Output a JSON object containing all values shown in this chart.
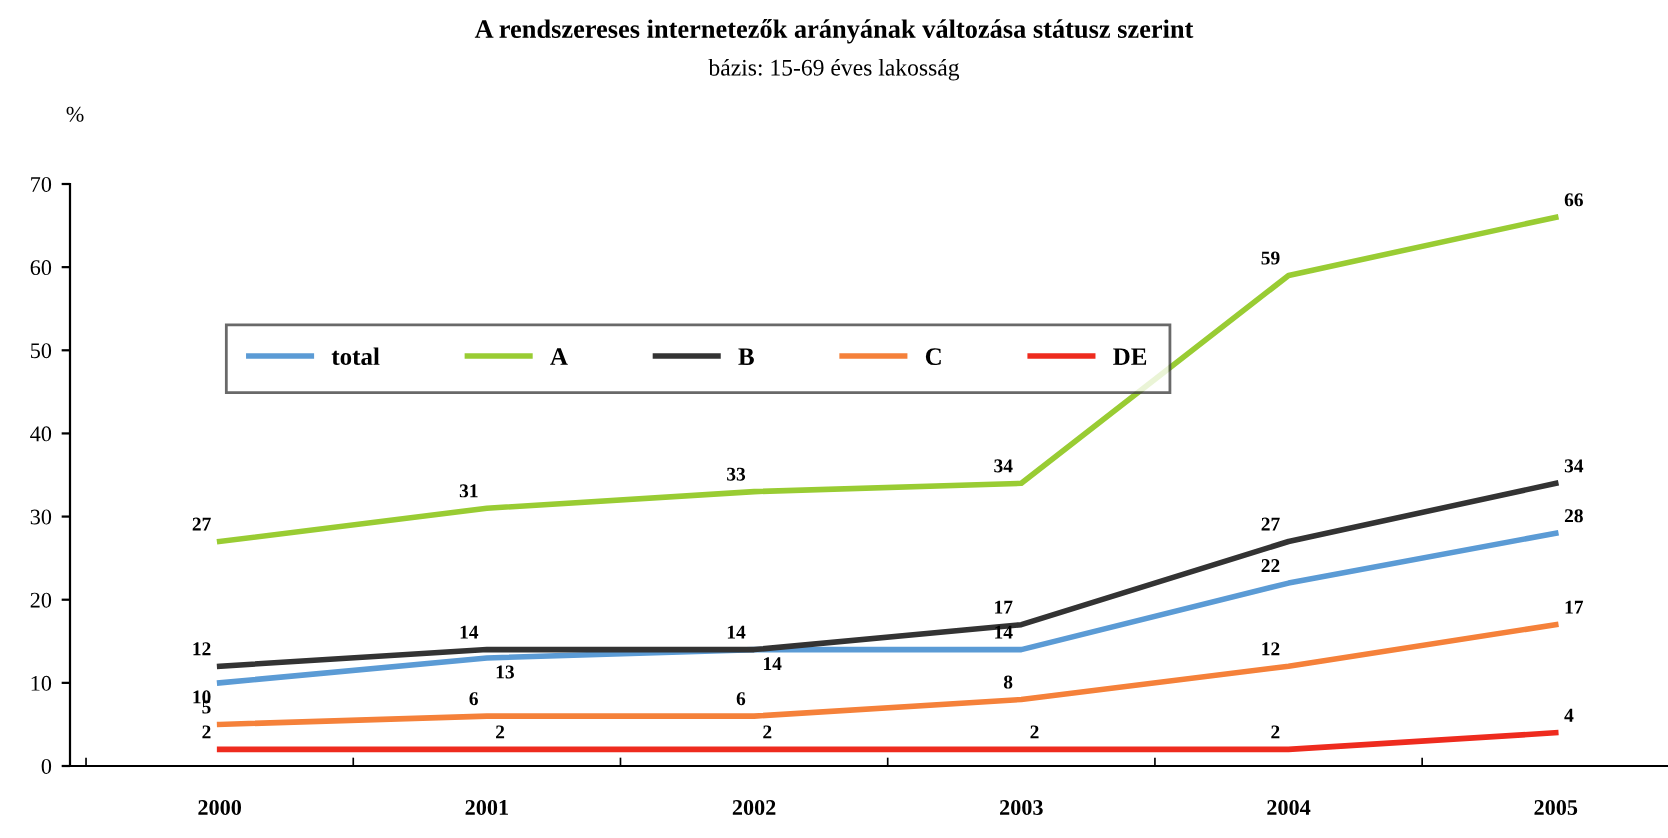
{
  "chart_data": {
    "type": "line",
    "title": "A rendszereses internetezők arányának változása státusz szerint",
    "subtitle": "bázis: 15-69 éves lakosság",
    "ylabel": "%",
    "categories": [
      "2000",
      "2001",
      "2002",
      "2003",
      "2004",
      "2005"
    ],
    "series": [
      {
        "name": "total",
        "color": "#5b9bd5",
        "values": [
          10,
          13,
          14,
          14,
          22,
          28
        ]
      },
      {
        "name": "A",
        "color": "#99cc33",
        "values": [
          27,
          31,
          33,
          34,
          59,
          66
        ]
      },
      {
        "name": "B",
        "color": "#333333",
        "values": [
          12,
          14,
          14,
          17,
          27,
          34
        ]
      },
      {
        "name": "C",
        "color": "#f5813a",
        "values": [
          5,
          6,
          6,
          8,
          12,
          17
        ]
      },
      {
        "name": "DE",
        "color": "#ee2b1e",
        "values": [
          2,
          2,
          2,
          2,
          2,
          4
        ]
      }
    ],
    "ylim": [
      0,
      70
    ],
    "yticks": [
      0,
      10,
      20,
      30,
      40,
      50,
      60,
      70
    ],
    "grid": false,
    "legend": "top left",
    "marker": "none",
    "line_style": "solid",
    "data_labels": true
  }
}
